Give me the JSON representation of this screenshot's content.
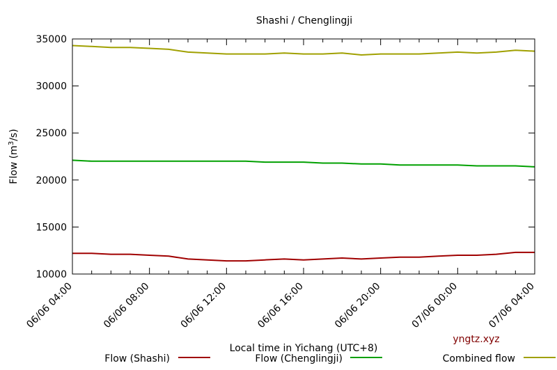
{
  "chart_data": {
    "type": "line",
    "title": "Shashi / Chenglingji",
    "xlabel": "Local time in Yichang (UTC+8)",
    "ylabel_main": "Flow (m",
    "ylabel_sup": "3",
    "ylabel_tail": "/s)",
    "ylim": [
      10000,
      35000
    ],
    "yticks": [
      "10000",
      "15000",
      "20000",
      "25000",
      "30000",
      "35000"
    ],
    "xtick_labels": [
      "06/06 04:00",
      "06/06 08:00",
      "06/06 12:00",
      "06/06 16:00",
      "06/06 20:00",
      "07/06 00:00",
      "07/06 04:00"
    ],
    "x_hours": [
      0,
      1,
      2,
      3,
      4,
      5,
      6,
      7,
      8,
      9,
      10,
      11,
      12,
      13,
      14,
      15,
      16,
      17,
      18,
      19,
      20,
      21,
      22,
      23,
      24
    ],
    "series": [
      {
        "name": "Flow (Shashi)",
        "color": "#a00000",
        "values": [
          12200,
          12200,
          12100,
          12100,
          12000,
          11900,
          11600,
          11500,
          11400,
          11400,
          11500,
          11600,
          11500,
          11600,
          11700,
          11600,
          11700,
          11800,
          11800,
          11900,
          12000,
          12000,
          12100,
          12300,
          12300
        ]
      },
      {
        "name": "Flow (Chenglingji)",
        "color": "#00a000",
        "values": [
          22100,
          22000,
          22000,
          22000,
          22000,
          22000,
          22000,
          22000,
          22000,
          22000,
          21900,
          21900,
          21900,
          21800,
          21800,
          21700,
          21700,
          21600,
          21600,
          21600,
          21600,
          21500,
          21500,
          21500,
          21400
        ]
      },
      {
        "name": "Combined flow",
        "color": "#a0a000",
        "values": [
          34300,
          34200,
          34100,
          34100,
          34000,
          33900,
          33600,
          33500,
          33400,
          33400,
          33400,
          33500,
          33400,
          33400,
          33500,
          33300,
          33400,
          33400,
          33400,
          33500,
          33600,
          33500,
          33600,
          33800,
          33700
        ]
      }
    ],
    "grid": false,
    "legend_position": "bottom"
  },
  "watermark": "yngtz.xyz"
}
